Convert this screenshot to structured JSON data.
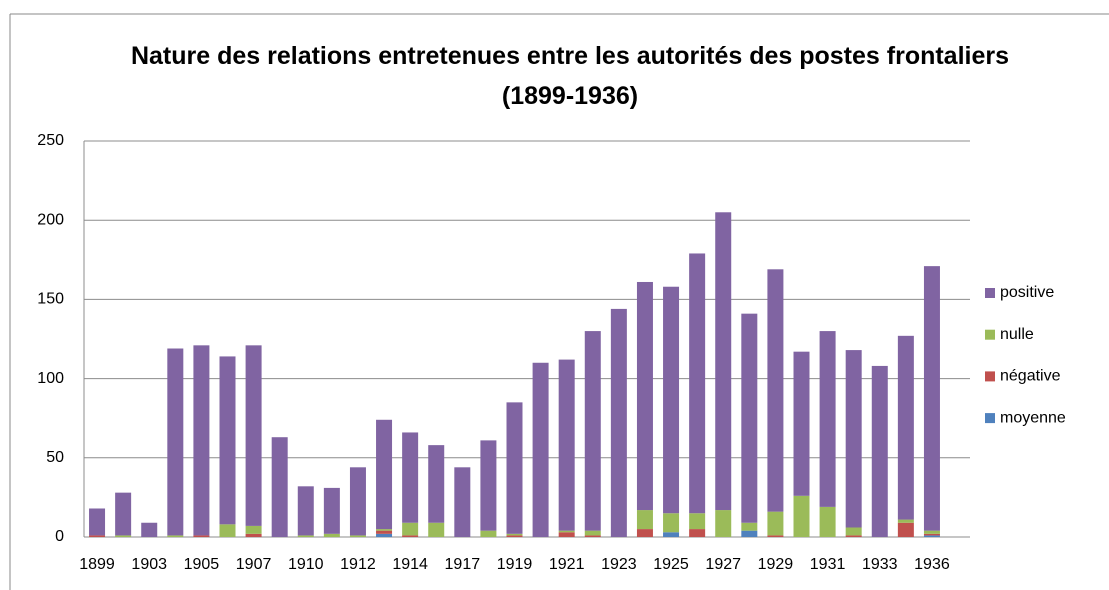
{
  "chart_data": {
    "type": "bar",
    "stacked": true,
    "title": "Nature des relations entretenues entre les autorités des postes frontaliers (1899-1936)",
    "categories": [
      "1899",
      null,
      "1903",
      null,
      "1905",
      null,
      "1907",
      null,
      "1910",
      null,
      "1912",
      null,
      "1914",
      null,
      "1917",
      null,
      "1919",
      null,
      "1921",
      null,
      "1923",
      null,
      "1925",
      null,
      "1927",
      null,
      "1929",
      null,
      "1931",
      null,
      "1933",
      null,
      "1936"
    ],
    "series": [
      {
        "name": "moyenne",
        "color": "#4f81bd",
        "values": [
          0,
          0,
          0,
          0,
          0,
          0,
          0,
          0,
          0,
          0,
          0,
          2,
          0,
          0,
          0,
          0,
          0,
          0,
          0,
          0,
          0,
          0,
          3,
          0,
          0,
          4,
          0,
          0,
          0,
          0,
          0,
          0,
          1
        ]
      },
      {
        "name": "négative",
        "color": "#c0504d",
        "values": [
          1,
          0,
          0,
          0,
          1,
          0,
          2,
          0,
          0,
          0,
          0,
          2,
          1,
          0,
          0,
          0,
          1,
          0,
          3,
          1,
          0,
          5,
          0,
          5,
          0,
          0,
          1,
          0,
          0,
          1,
          0,
          9,
          1
        ]
      },
      {
        "name": "nulle",
        "color": "#9bbb59",
        "values": [
          0,
          1,
          0,
          1,
          0,
          8,
          5,
          0,
          1,
          2,
          1,
          1,
          8,
          9,
          0,
          4,
          1,
          0,
          1,
          3,
          0,
          12,
          12,
          10,
          17,
          5,
          15,
          26,
          19,
          5,
          0,
          2,
          2
        ]
      },
      {
        "name": "positive",
        "color": "#8064a2",
        "values": [
          17,
          27,
          9,
          118,
          120,
          106,
          114,
          63,
          31,
          29,
          43,
          69,
          57,
          49,
          44,
          57,
          83,
          110,
          108,
          126,
          144,
          144,
          143,
          164,
          188,
          132,
          153,
          91,
          111,
          112,
          108,
          116,
          167
        ]
      }
    ],
    "ylim": [
      0,
      250
    ],
    "yticks": [
      0,
      50,
      100,
      150,
      200,
      250
    ],
    "grid": true,
    "legend": "right"
  }
}
